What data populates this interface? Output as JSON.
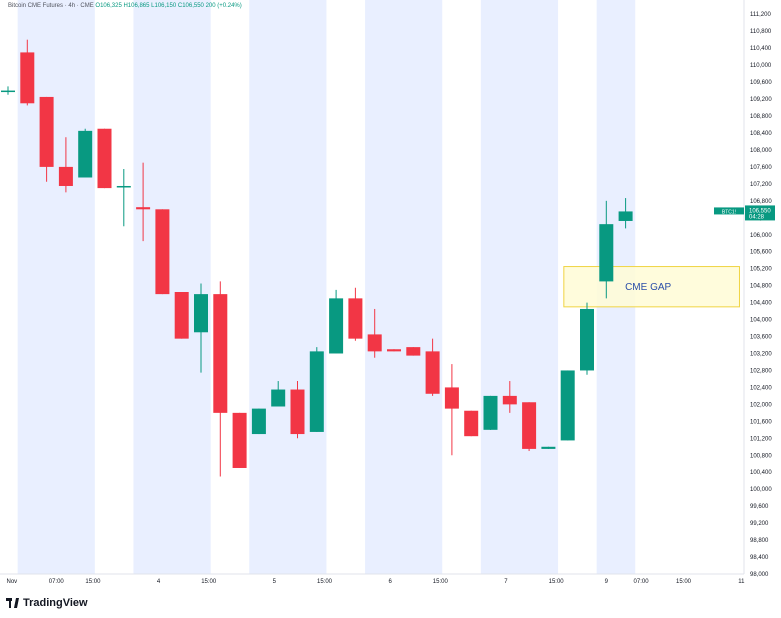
{
  "header": {
    "symbol": "Bitcoin CME Futures",
    "interval": "4h",
    "exchange": "CME",
    "open": "O106,325",
    "high": "H106,865",
    "low": "L106,150",
    "close": "C106,550",
    "change": "200 (+0.24%)"
  },
  "brand": {
    "name": "TradingView"
  },
  "colors": {
    "up": "#089981",
    "down": "#f23645",
    "shade": "#e9efff",
    "gap_fill": "#fffbd6",
    "gap_border": "#f0d443",
    "gap_text": "#2a4ea8",
    "price_tag": "#089981"
  },
  "chart_data": {
    "type": "candlestick",
    "title": "",
    "ylim": [
      98000,
      111300
    ],
    "y_ticks": [
      98000,
      98400,
      98800,
      99200,
      99600,
      100000,
      100400,
      100800,
      101200,
      101600,
      102000,
      102400,
      102800,
      103200,
      103600,
      104000,
      104400,
      104800,
      105200,
      105600,
      106000,
      106400,
      106800,
      107200,
      107600,
      108000,
      108400,
      108800,
      109200,
      109600,
      110000,
      110400,
      110800,
      111200
    ],
    "y_tick_labels": [
      "98,000",
      "98,400",
      "98,800",
      "99,200",
      "99,600",
      "100,000",
      "100,400",
      "100,800",
      "101,200",
      "101,600",
      "102,000",
      "102,400",
      "102,800",
      "103,200",
      "103,600",
      "104,000",
      "104,400",
      "104,800",
      "105,200",
      "105,600",
      "106,000",
      "106,400",
      "106,800",
      "107,200",
      "107,600",
      "108,000",
      "108,400",
      "108,800",
      "109,200",
      "109,600",
      "110,000",
      "110,400",
      "110,800",
      "111,200"
    ],
    "x_labels": [
      {
        "index": 0.2,
        "label": "Nov"
      },
      {
        "index": 2.5,
        "label": "07:00"
      },
      {
        "index": 4.4,
        "label": "15:00"
      },
      {
        "index": 7.8,
        "label": "4"
      },
      {
        "index": 10.4,
        "label": "15:00"
      },
      {
        "index": 13.8,
        "label": "5"
      },
      {
        "index": 16.4,
        "label": "15:00"
      },
      {
        "index": 19.8,
        "label": "6"
      },
      {
        "index": 22.4,
        "label": "15:00"
      },
      {
        "index": 25.8,
        "label": "7"
      },
      {
        "index": 28.4,
        "label": "15:00"
      },
      {
        "index": 31.0,
        "label": "9"
      },
      {
        "index": 32.8,
        "label": "07:00"
      },
      {
        "index": 35.0,
        "label": "15:00"
      },
      {
        "index": 38.0,
        "label": "11"
      }
    ],
    "candles": [
      {
        "o": 109400,
        "h": 109500,
        "l": 109300,
        "c": 109400
      },
      {
        "o": 110300,
        "h": 110600,
        "l": 109050,
        "c": 109100
      },
      {
        "o": 109250,
        "h": 109250,
        "l": 107250,
        "c": 107600
      },
      {
        "o": 107600,
        "h": 108300,
        "l": 107000,
        "c": 107150
      },
      {
        "o": 107350,
        "h": 108500,
        "l": 107350,
        "c": 108450
      },
      {
        "o": 108500,
        "h": 108500,
        "l": 107100,
        "c": 107100
      },
      {
        "o": 107150,
        "h": 107550,
        "l": 106200,
        "c": 107150
      },
      {
        "o": 106650,
        "h": 107700,
        "l": 105850,
        "c": 106600
      },
      {
        "o": 106600,
        "h": 106600,
        "l": 104600,
        "c": 104600
      },
      {
        "o": 104650,
        "h": 104650,
        "l": 103550,
        "c": 103550
      },
      {
        "o": 103700,
        "h": 104850,
        "l": 102750,
        "c": 104600
      },
      {
        "o": 104600,
        "h": 104900,
        "l": 100300,
        "c": 101800
      },
      {
        "o": 101800,
        "h": 101800,
        "l": 100500,
        "c": 100500
      },
      {
        "o": 101300,
        "h": 101900,
        "l": 101300,
        "c": 101900
      },
      {
        "o": 101950,
        "h": 102550,
        "l": 101950,
        "c": 102350
      },
      {
        "o": 102350,
        "h": 102550,
        "l": 101200,
        "c": 101300
      },
      {
        "o": 101350,
        "h": 103350,
        "l": 101350,
        "c": 103250
      },
      {
        "o": 103200,
        "h": 104700,
        "l": 103200,
        "c": 104500
      },
      {
        "o": 104500,
        "h": 104750,
        "l": 103500,
        "c": 103550
      },
      {
        "o": 103650,
        "h": 104250,
        "l": 103100,
        "c": 103250
      },
      {
        "o": 103300,
        "h": 103300,
        "l": 103250,
        "c": 103250
      },
      {
        "o": 103350,
        "h": 103350,
        "l": 103150,
        "c": 103150
      },
      {
        "o": 103250,
        "h": 103550,
        "l": 102200,
        "c": 102250
      },
      {
        "o": 102400,
        "h": 102950,
        "l": 100800,
        "c": 101900
      },
      {
        "o": 101850,
        "h": 101850,
        "l": 101250,
        "c": 101250
      },
      {
        "o": 101400,
        "h": 102200,
        "l": 101400,
        "c": 102200
      },
      {
        "o": 102200,
        "h": 102550,
        "l": 101800,
        "c": 102000
      },
      {
        "o": 102050,
        "h": 102050,
        "l": 100900,
        "c": 100950
      },
      {
        "o": 100950,
        "h": 101000,
        "l": 100950,
        "c": 101000
      },
      {
        "o": 101150,
        "h": 102800,
        "l": 101150,
        "c": 102800
      },
      {
        "o": 102800,
        "h": 104400,
        "l": 102700,
        "c": 104250
      },
      {
        "o": 104900,
        "h": 106800,
        "l": 104500,
        "c": 106250
      },
      {
        "o": 106325,
        "h": 106865,
        "l": 106150,
        "c": 106550
      }
    ],
    "session_shading": [
      {
        "start": 0.5,
        "end": 4.5
      },
      {
        "start": 6.5,
        "end": 10.5
      },
      {
        "start": 12.5,
        "end": 16.5
      },
      {
        "start": 18.5,
        "end": 22.5
      },
      {
        "start": 24.5,
        "end": 28.5
      },
      {
        "start": 30.5,
        "end": 32.5
      }
    ],
    "annotations": [
      {
        "type": "rect",
        "label": "CME GAP",
        "x_from": 28.8,
        "x_to": 37.9,
        "y_from": 104300,
        "y_to": 105250
      }
    ],
    "last_price": {
      "value": "106,550",
      "countdown": "04:28",
      "symbol_tag": "BTC1!"
    }
  }
}
